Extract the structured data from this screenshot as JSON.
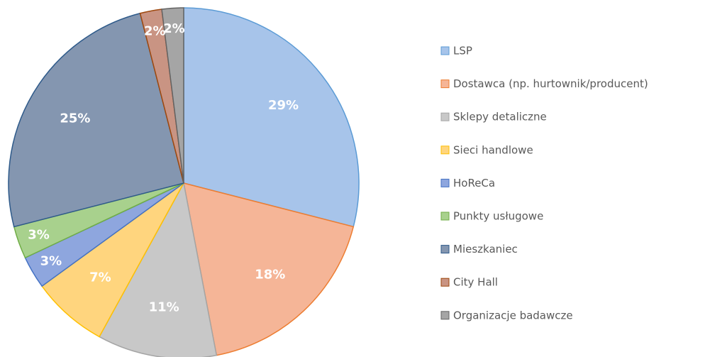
{
  "chart_data": {
    "type": "pie",
    "categories": [
      "LSP",
      "Dostawca (np. hurtownik/producent)",
      "Sklepy detaliczne",
      "Sieci handlowe",
      "HoReCa",
      "Punkty usługowe",
      "Mieszkaniec",
      "City Hall",
      "Organizacje badawcze"
    ],
    "values": [
      29,
      18,
      11,
      7,
      3,
      3,
      25,
      2,
      2
    ],
    "value_labels": [
      "29%",
      "18%",
      "11%",
      "7%",
      "3%",
      "3%",
      "25%",
      "2%",
      "2%"
    ],
    "colors": [
      "#a7c4ea",
      "#f5b597",
      "#c8c8c8",
      "#ffd57e",
      "#8ea6de",
      "#a8d18d",
      "#8496b0",
      "#c99483",
      "#a5a5a5"
    ],
    "edge_colors": [
      "#5b9bd5",
      "#ed7d31",
      "#a5a5a5",
      "#ffc000",
      "#4472c4",
      "#70ad47",
      "#2e5a8a",
      "#9e480e",
      "#636363"
    ],
    "legend": "right"
  }
}
